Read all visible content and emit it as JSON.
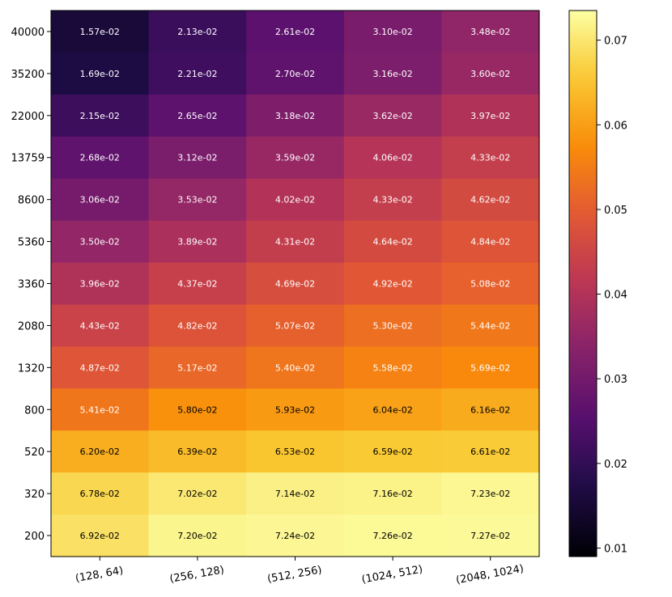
{
  "chart_data": {
    "type": "heatmap",
    "title": "",
    "xlabel": "",
    "ylabel": "",
    "x_categories": [
      "(128, 64)",
      "(256, 128)",
      "(512, 256)",
      "(1024, 512)",
      "(2048, 1024)"
    ],
    "y_categories": [
      "40000",
      "35200",
      "22000",
      "13759",
      "8600",
      "5360",
      "3360",
      "2080",
      "1320",
      "800",
      "520",
      "320",
      "200"
    ],
    "values": [
      [
        0.0157,
        0.0213,
        0.0261,
        0.031,
        0.0348
      ],
      [
        0.0169,
        0.0221,
        0.027,
        0.0316,
        0.036
      ],
      [
        0.0215,
        0.0265,
        0.0318,
        0.0362,
        0.0397
      ],
      [
        0.0268,
        0.0312,
        0.0359,
        0.0406,
        0.0433
      ],
      [
        0.0306,
        0.0353,
        0.0402,
        0.0433,
        0.0462
      ],
      [
        0.035,
        0.0389,
        0.0431,
        0.0464,
        0.0484
      ],
      [
        0.0396,
        0.0437,
        0.0469,
        0.0492,
        0.0508
      ],
      [
        0.0443,
        0.0482,
        0.0507,
        0.053,
        0.0544
      ],
      [
        0.0487,
        0.0517,
        0.054,
        0.0558,
        0.0569
      ],
      [
        0.0541,
        0.058,
        0.0593,
        0.0604,
        0.0616
      ],
      [
        0.062,
        0.0639,
        0.0653,
        0.0659,
        0.0661
      ],
      [
        0.0678,
        0.0702,
        0.0714,
        0.0716,
        0.0723
      ],
      [
        0.0692,
        0.072,
        0.0724,
        0.0726,
        0.0727
      ]
    ],
    "labels": [
      [
        "1.57e-02",
        "2.13e-02",
        "2.61e-02",
        "3.10e-02",
        "3.48e-02"
      ],
      [
        "1.69e-02",
        "2.21e-02",
        "2.70e-02",
        "3.16e-02",
        "3.60e-02"
      ],
      [
        "2.15e-02",
        "2.65e-02",
        "3.18e-02",
        "3.62e-02",
        "3.97e-02"
      ],
      [
        "2.68e-02",
        "3.12e-02",
        "3.59e-02",
        "4.06e-02",
        "4.33e-02"
      ],
      [
        "3.06e-02",
        "3.53e-02",
        "4.02e-02",
        "4.33e-02",
        "4.62e-02"
      ],
      [
        "3.50e-02",
        "3.89e-02",
        "4.31e-02",
        "4.64e-02",
        "4.84e-02"
      ],
      [
        "3.96e-02",
        "4.37e-02",
        "4.69e-02",
        "4.92e-02",
        "5.08e-02"
      ],
      [
        "4.43e-02",
        "4.82e-02",
        "5.07e-02",
        "5.30e-02",
        "5.44e-02"
      ],
      [
        "4.87e-02",
        "5.17e-02",
        "5.40e-02",
        "5.58e-02",
        "5.69e-02"
      ],
      [
        "5.41e-02",
        "5.80e-02",
        "5.93e-02",
        "6.04e-02",
        "6.16e-02"
      ],
      [
        "6.20e-02",
        "6.39e-02",
        "6.53e-02",
        "6.59e-02",
        "6.61e-02"
      ],
      [
        "6.78e-02",
        "7.02e-02",
        "7.14e-02",
        "7.16e-02",
        "7.23e-02"
      ],
      [
        "6.92e-02",
        "7.20e-02",
        "7.24e-02",
        "7.26e-02",
        "7.27e-02"
      ]
    ],
    "colorbar": {
      "range": [
        0.009,
        0.0735
      ],
      "ticks": [
        0.01,
        0.02,
        0.03,
        0.04,
        0.05,
        0.06,
        0.07
      ],
      "tick_labels": [
        "0.01",
        "0.02",
        "0.03",
        "0.04",
        "0.05",
        "0.06",
        "0.07"
      ],
      "colormap": "inferno"
    },
    "label_color_threshold": 0.058,
    "label_colors": {
      "light": "#ffffff",
      "dark": "#000000"
    }
  }
}
